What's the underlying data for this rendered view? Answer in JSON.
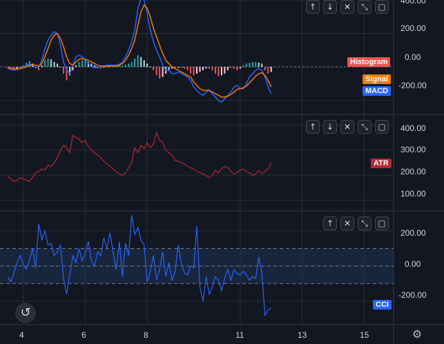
{
  "colors": {
    "background": "#131722",
    "grid": "#2a2e39",
    "divider": "#363a45",
    "macd": "#2962ff",
    "signal": "#f57c00",
    "hist_pos": "#26a69a",
    "hist_pos_light": "#b2dfdb",
    "hist_neg": "#ef5350",
    "hist_neg_light": "#ffcdd2",
    "atr": "#b22833",
    "cci": "#2962ff",
    "cci_band": "#1e3a5f"
  },
  "icons": {
    "up": "↑",
    "down": "↓",
    "close": "✕",
    "collapse": "⤡",
    "maximize": "▢",
    "reset": "↺",
    "gear": "⚙"
  },
  "chart_data": [
    {
      "type": "bar",
      "name": "MACD panel",
      "x": [
        3.5,
        3.6,
        3.7,
        3.8,
        3.9,
        4.0,
        4.1,
        4.2,
        4.3,
        4.4,
        4.5,
        4.6,
        4.7,
        4.8,
        4.9,
        5.0,
        5.1,
        5.2,
        5.3,
        5.4,
        5.5,
        5.6,
        5.7,
        5.8,
        5.9,
        6.0,
        6.1,
        6.2,
        6.3,
        6.4,
        6.5,
        6.6,
        6.7,
        6.8,
        6.9,
        7.0,
        7.1,
        7.2,
        7.3,
        7.4,
        7.5,
        7.6,
        7.7,
        7.8,
        7.9,
        8.0,
        8.1,
        8.2,
        8.3,
        8.4,
        8.5,
        8.6,
        8.7,
        8.8,
        8.9,
        9.0,
        9.1,
        9.2,
        9.3,
        9.4,
        9.5,
        9.6,
        9.7,
        9.8,
        9.9,
        10.0,
        10.1,
        10.2,
        10.3,
        10.4,
        10.5,
        10.6,
        10.7,
        10.8,
        10.9,
        11.0,
        11.1,
        11.2,
        11.3,
        11.4,
        11.5,
        11.6,
        11.7,
        11.8,
        11.9,
        12.0
      ],
      "series": [
        {
          "name": "Histogram",
          "values": [
            -5,
            -10,
            -15,
            -10,
            0,
            10,
            25,
            35,
            20,
            0,
            -20,
            10,
            40,
            50,
            45,
            30,
            20,
            0,
            -40,
            -80,
            -50,
            -20,
            10,
            30,
            40,
            40,
            30,
            20,
            10,
            0,
            -10,
            0,
            0,
            5,
            10,
            10,
            10,
            10,
            15,
            20,
            30,
            50,
            70,
            60,
            40,
            20,
            0,
            -20,
            -50,
            -70,
            -60,
            -40,
            -20,
            -10,
            -10,
            -5,
            0,
            -10,
            -20,
            -40,
            -50,
            -40,
            -30,
            -20,
            -10,
            -10,
            -20,
            -40,
            -55,
            -50,
            -40,
            -20,
            0,
            -10,
            -20,
            -10,
            10,
            20,
            25,
            30,
            30,
            25,
            20,
            -20,
            -40,
            -30
          ]
        },
        {
          "name": "MACD",
          "values": [
            -10,
            -15,
            -20,
            -15,
            -10,
            0,
            10,
            20,
            10,
            -5,
            0,
            40,
            110,
            160,
            190,
            210,
            200,
            130,
            30,
            -20,
            -40,
            10,
            60,
            70,
            60,
            40,
            20,
            0,
            -5,
            -5,
            0,
            5,
            10,
            10,
            10,
            10,
            15,
            30,
            60,
            100,
            150,
            220,
            350,
            410,
            400,
            320,
            220,
            150,
            100,
            60,
            10,
            -20,
            -20,
            -40,
            -40,
            -30,
            -40,
            -50,
            -60,
            -80,
            -120,
            -140,
            -160,
            -170,
            -150,
            -140,
            -160,
            -180,
            -200,
            -210,
            -190,
            -170,
            -150,
            -120,
            -110,
            -130,
            -130,
            -100,
            -60,
            -40,
            -20,
            -10,
            -20,
            -60,
            -120,
            -160
          ]
        },
        {
          "name": "Signal",
          "values": [
            -5,
            -8,
            -12,
            -12,
            -10,
            -5,
            0,
            10,
            12,
            10,
            5,
            20,
            60,
            110,
            160,
            190,
            200,
            170,
            120,
            60,
            20,
            10,
            30,
            45,
            50,
            45,
            40,
            30,
            20,
            10,
            5,
            5,
            5,
            5,
            5,
            5,
            10,
            20,
            40,
            70,
            110,
            160,
            250,
            330,
            370,
            350,
            300,
            230,
            180,
            130,
            80,
            40,
            20,
            0,
            -10,
            -20,
            -30,
            -40,
            -50,
            -60,
            -90,
            -110,
            -130,
            -140,
            -140,
            -140,
            -150,
            -160,
            -170,
            -180,
            -180,
            -175,
            -165,
            -150,
            -135,
            -130,
            -125,
            -115,
            -95,
            -75,
            -55,
            -40,
            -35,
            -50,
            -80,
            -120
          ]
        }
      ],
      "ylim": [
        -280,
        400
      ],
      "yticks": [
        400,
        200,
        0,
        -200
      ]
    },
    {
      "type": "line",
      "name": "ATR panel",
      "x": [
        3.5,
        3.6,
        3.7,
        3.8,
        3.9,
        4.0,
        4.1,
        4.2,
        4.3,
        4.4,
        4.5,
        4.6,
        4.7,
        4.8,
        4.9,
        5.0,
        5.1,
        5.2,
        5.3,
        5.4,
        5.5,
        5.6,
        5.7,
        5.8,
        5.9,
        6.0,
        6.1,
        6.2,
        6.3,
        6.4,
        6.5,
        6.6,
        6.7,
        6.8,
        6.9,
        7.0,
        7.1,
        7.2,
        7.3,
        7.4,
        7.5,
        7.6,
        7.7,
        7.8,
        7.9,
        8.0,
        8.1,
        8.2,
        8.3,
        8.4,
        8.5,
        8.6,
        8.7,
        8.8,
        8.9,
        9.0,
        9.1,
        9.2,
        9.3,
        9.4,
        9.5,
        9.6,
        9.7,
        9.8,
        9.9,
        10.0,
        10.1,
        10.2,
        10.3,
        10.4,
        10.5,
        10.6,
        10.7,
        10.8,
        10.9,
        11.0,
        11.1,
        11.2,
        11.3,
        11.4,
        11.5,
        11.6,
        11.7,
        11.8,
        11.9,
        12.0
      ],
      "series": [
        {
          "name": "ATR",
          "values": [
            195,
            185,
            175,
            180,
            190,
            185,
            180,
            175,
            190,
            210,
            215,
            225,
            220,
            240,
            235,
            250,
            270,
            300,
            320,
            310,
            290,
            360,
            350,
            345,
            330,
            340,
            315,
            300,
            290,
            280,
            270,
            255,
            245,
            235,
            225,
            215,
            205,
            200,
            210,
            230,
            250,
            310,
            290,
            320,
            305,
            330,
            310,
            325,
            370,
            340,
            330,
            300,
            290,
            280,
            260,
            255,
            250,
            245,
            235,
            230,
            225,
            215,
            210,
            205,
            200,
            190,
            200,
            220,
            210,
            225,
            235,
            230,
            215,
            205,
            210,
            220,
            225,
            215,
            210,
            200,
            205,
            220,
            205,
            215,
            225,
            250
          ]
        }
      ],
      "ylim": [
        60,
        440
      ],
      "yticks": [
        400,
        300,
        200,
        100
      ]
    },
    {
      "type": "line",
      "name": "CCI panel",
      "x": [
        3.5,
        3.6,
        3.7,
        3.8,
        3.9,
        4.0,
        4.1,
        4.2,
        4.3,
        4.4,
        4.5,
        4.6,
        4.7,
        4.8,
        4.9,
        5.0,
        5.1,
        5.2,
        5.3,
        5.4,
        5.5,
        5.6,
        5.7,
        5.8,
        5.9,
        6.0,
        6.1,
        6.2,
        6.3,
        6.4,
        6.5,
        6.6,
        6.7,
        6.8,
        6.9,
        7.0,
        7.1,
        7.2,
        7.3,
        7.4,
        7.5,
        7.6,
        7.7,
        7.8,
        7.9,
        8.0,
        8.1,
        8.2,
        8.3,
        8.4,
        8.5,
        8.6,
        8.7,
        8.8,
        8.9,
        9.0,
        9.1,
        9.2,
        9.3,
        9.4,
        9.5,
        9.6,
        9.7,
        9.8,
        9.9,
        10.0,
        10.1,
        10.2,
        10.3,
        10.4,
        10.5,
        10.6,
        10.7,
        10.8,
        10.9,
        11.0,
        11.1,
        11.2,
        11.3,
        11.4,
        11.5,
        11.6,
        11.7,
        11.8,
        11.9,
        12.0
      ],
      "series": [
        {
          "name": "CCI",
          "values": [
            -60,
            -90,
            -40,
            20,
            60,
            10,
            -20,
            30,
            100,
            -10,
            240,
            150,
            200,
            120,
            130,
            60,
            80,
            120,
            -70,
            -160,
            -50,
            60,
            20,
            100,
            30,
            70,
            140,
            30,
            0,
            80,
            60,
            160,
            100,
            190,
            80,
            -20,
            140,
            -60,
            130,
            60,
            290,
            180,
            220,
            150,
            120,
            -90,
            -30,
            60,
            -80,
            -20,
            80,
            -60,
            20,
            -80,
            -30,
            120,
            20,
            -40,
            -50,
            0,
            -10,
            230,
            -120,
            -200,
            -60,
            -160,
            -120,
            -60,
            -80,
            -140,
            -70,
            -20,
            -80,
            -20,
            -40,
            -50,
            -30,
            -50,
            -80,
            -60,
            -70,
            50,
            -40,
            -280,
            -250,
            -240
          ]
        }
      ],
      "ylim": [
        -330,
        310
      ],
      "yticks": [
        200,
        0,
        -200
      ],
      "band": [
        100,
        -100
      ]
    }
  ],
  "x_axis": {
    "labels": [
      "4",
      "6",
      "8",
      "11",
      "13",
      "15"
    ],
    "values": [
      4,
      6,
      8,
      11,
      13,
      15
    ],
    "range": [
      3.25,
      15.95
    ]
  },
  "macd_panel": {
    "y_labels": [
      "400.00",
      "200.00",
      "0.00",
      "-200.00"
    ],
    "tags": [
      {
        "text": "Histogram",
        "color": "#ef5350"
      },
      {
        "text": "Signal",
        "color": "#f57c00"
      },
      {
        "text": "MACD",
        "color": "#2962ff"
      }
    ]
  },
  "atr_panel": {
    "y_labels": [
      "400.00",
      "300.00",
      "200.00",
      "100.00"
    ],
    "tag": {
      "text": "ATR",
      "color": "#b22833"
    }
  },
  "cci_panel": {
    "y_labels": [
      "200.00",
      "0.00",
      "-200.00"
    ],
    "tag": {
      "text": "CCI",
      "color": "#2962ff"
    }
  }
}
